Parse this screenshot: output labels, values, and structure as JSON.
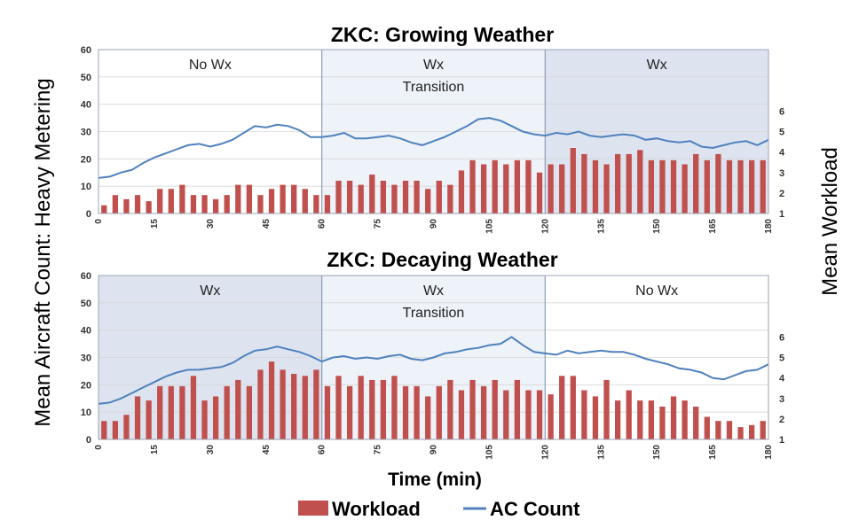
{
  "figure": {
    "ylabel_left": "Mean Aircraft Count: Heavy Metering",
    "ylabel_right": "Mean Workload",
    "xlabel": "Time (min)",
    "legend": [
      {
        "label": "Workload",
        "kind": "bar",
        "color": "#c0504d"
      },
      {
        "label": "AC Count",
        "kind": "line",
        "color": "#4f81bd"
      }
    ],
    "colors": {
      "bar": "#c0504d",
      "line": "#4f81bd",
      "shade_dark": "#dde4f0",
      "shade_light": "#eef2f9",
      "divider": "#8e9cb8"
    },
    "legend_placement": "bottom-center"
  },
  "chart_data": [
    {
      "type": "bar",
      "title": "ZKC: Growing Weather",
      "xlim": [
        0,
        180
      ],
      "x_ticks": [
        0,
        15,
        30,
        45,
        60,
        75,
        90,
        105,
        120,
        135,
        150,
        165,
        180
      ],
      "ylim_left": [
        0,
        60
      ],
      "y_ticks_left": [
        0,
        10,
        20,
        30,
        40,
        50,
        60
      ],
      "ylim_right": [
        1,
        9
      ],
      "y_ticks_right": [
        1,
        2,
        3,
        4,
        5,
        6
      ],
      "regions": [
        {
          "start": 0,
          "end": 60,
          "label": "No Wx",
          "shade": "none"
        },
        {
          "start": 60,
          "end": 120,
          "label": "Wx\nTransition",
          "shade": "light"
        },
        {
          "start": 120,
          "end": 180,
          "label": "Wx",
          "shade": "dark"
        }
      ],
      "series": [
        {
          "name": "Workload",
          "kind": "bar",
          "axis": "right",
          "x": [
            1.5,
            4.5,
            7.5,
            10.5,
            13.5,
            16.5,
            19.5,
            22.5,
            25.5,
            28.5,
            31.5,
            34.5,
            37.5,
            40.5,
            43.5,
            46.5,
            49.5,
            52.5,
            55.5,
            58.5,
            61.5,
            64.5,
            67.5,
            70.5,
            73.5,
            76.5,
            79.5,
            82.5,
            85.5,
            88.5,
            91.5,
            94.5,
            97.5,
            100.5,
            103.5,
            106.5,
            109.5,
            112.5,
            115.5,
            118.5,
            121.5,
            124.5,
            127.5,
            130.5,
            133.5,
            136.5,
            139.5,
            142.5,
            145.5,
            148.5,
            151.5,
            154.5,
            157.5,
            160.5,
            163.5,
            166.5,
            169.5,
            172.5,
            175.5,
            178.5
          ],
          "values": [
            1.4,
            1.9,
            1.7,
            1.9,
            1.6,
            2.2,
            2.2,
            2.4,
            1.9,
            1.9,
            1.7,
            1.9,
            2.4,
            2.4,
            1.9,
            2.2,
            2.4,
            2.4,
            2.2,
            1.9,
            1.9,
            2.6,
            2.6,
            2.4,
            2.9,
            2.6,
            2.4,
            2.6,
            2.6,
            2.2,
            2.6,
            2.4,
            3.1,
            3.6,
            3.4,
            3.6,
            3.4,
            3.6,
            3.6,
            3.0,
            3.4,
            3.4,
            4.2,
            3.9,
            3.6,
            3.4,
            3.9,
            3.9,
            4.1,
            3.6,
            3.6,
            3.6,
            3.4,
            3.9,
            3.6,
            3.9,
            3.6,
            3.6,
            3.6,
            3.6
          ]
        },
        {
          "name": "AC Count",
          "kind": "line",
          "axis": "left",
          "x": [
            0,
            3,
            6,
            9,
            12,
            15,
            18,
            21,
            24,
            27,
            30,
            33,
            36,
            39,
            42,
            45,
            48,
            51,
            54,
            57,
            60,
            63,
            66,
            69,
            72,
            75,
            78,
            81,
            84,
            87,
            90,
            93,
            96,
            99,
            102,
            105,
            108,
            111,
            114,
            117,
            120,
            123,
            126,
            129,
            132,
            135,
            138,
            141,
            144,
            147,
            150,
            153,
            156,
            159,
            162,
            165,
            168,
            171,
            174,
            177,
            180
          ],
          "values": [
            13,
            13.5,
            15,
            16,
            18.5,
            20.5,
            22,
            23.5,
            25,
            25.5,
            24.5,
            25.5,
            27,
            29.5,
            32,
            31.5,
            32.5,
            32,
            30.5,
            28,
            28,
            28.5,
            29.5,
            27.5,
            27.5,
            28,
            28.5,
            27.5,
            26,
            25,
            26.5,
            28,
            30,
            32,
            34.5,
            35,
            34,
            32,
            30,
            29,
            28.5,
            29.5,
            29,
            30,
            28.5,
            28,
            28.5,
            29,
            28.5,
            27,
            27.5,
            26.5,
            26,
            26.5,
            24.5,
            24,
            25,
            26,
            26.5,
            25,
            27
          ]
        }
      ]
    },
    {
      "type": "bar",
      "title": "ZKC: Decaying Weather",
      "xlim": [
        0,
        180
      ],
      "x_ticks": [
        0,
        15,
        30,
        45,
        60,
        75,
        90,
        105,
        120,
        135,
        150,
        165,
        180
      ],
      "ylim_left": [
        0,
        60
      ],
      "y_ticks_left": [
        0,
        10,
        20,
        30,
        40,
        50,
        60
      ],
      "ylim_right": [
        1,
        9
      ],
      "y_ticks_right": [
        1,
        2,
        3,
        4,
        5,
        6
      ],
      "regions": [
        {
          "start": 0,
          "end": 60,
          "label": "Wx",
          "shade": "dark"
        },
        {
          "start": 60,
          "end": 120,
          "label": "Wx\nTransition",
          "shade": "light"
        },
        {
          "start": 120,
          "end": 180,
          "label": "No Wx",
          "shade": "none"
        }
      ],
      "series": [
        {
          "name": "Workload",
          "kind": "bar",
          "axis": "right",
          "x": [
            1.5,
            4.5,
            7.5,
            10.5,
            13.5,
            16.5,
            19.5,
            22.5,
            25.5,
            28.5,
            31.5,
            34.5,
            37.5,
            40.5,
            43.5,
            46.5,
            49.5,
            52.5,
            55.5,
            58.5,
            61.5,
            64.5,
            67.5,
            70.5,
            73.5,
            76.5,
            79.5,
            82.5,
            85.5,
            88.5,
            91.5,
            94.5,
            97.5,
            100.5,
            103.5,
            106.5,
            109.5,
            112.5,
            115.5,
            118.5,
            121.5,
            124.5,
            127.5,
            130.5,
            133.5,
            136.5,
            139.5,
            142.5,
            145.5,
            148.5,
            151.5,
            154.5,
            157.5,
            160.5,
            163.5,
            166.5,
            169.5,
            172.5,
            175.5,
            178.5
          ],
          "values": [
            1.9,
            1.9,
            2.2,
            3.1,
            2.9,
            3.6,
            3.6,
            3.6,
            4.1,
            2.9,
            3.1,
            3.6,
            3.9,
            3.6,
            4.4,
            4.8,
            4.4,
            4.2,
            4.1,
            4.4,
            3.6,
            4.1,
            3.6,
            4.1,
            3.9,
            3.9,
            4.1,
            3.6,
            3.6,
            3.1,
            3.6,
            3.9,
            3.4,
            3.9,
            3.6,
            3.9,
            3.4,
            3.9,
            3.4,
            3.4,
            3.2,
            4.1,
            4.1,
            3.4,
            3.1,
            3.9,
            2.9,
            3.4,
            2.9,
            2.9,
            2.6,
            3.1,
            2.9,
            2.6,
            2.1,
            1.9,
            1.9,
            1.6,
            1.7,
            1.9
          ]
        },
        {
          "name": "AC Count",
          "kind": "line",
          "axis": "left",
          "x": [
            0,
            3,
            6,
            9,
            12,
            15,
            18,
            21,
            24,
            27,
            30,
            33,
            36,
            39,
            42,
            45,
            48,
            51,
            54,
            57,
            60,
            63,
            66,
            69,
            72,
            75,
            78,
            81,
            84,
            87,
            90,
            93,
            96,
            99,
            102,
            105,
            108,
            111,
            114,
            117,
            120,
            123,
            126,
            129,
            132,
            135,
            138,
            141,
            144,
            147,
            150,
            153,
            156,
            159,
            162,
            165,
            168,
            171,
            174,
            177,
            180
          ],
          "values": [
            13,
            13.5,
            15,
            17,
            19,
            21,
            23,
            24.5,
            25.5,
            25.5,
            26,
            26.5,
            28,
            30.5,
            32.5,
            33,
            34,
            33,
            32,
            30.5,
            28.5,
            30,
            30.5,
            29.5,
            30,
            29.5,
            30.5,
            31,
            29.5,
            29,
            30,
            31.5,
            32,
            33,
            33.5,
            34.5,
            35,
            37.5,
            34.5,
            32,
            31.5,
            31,
            32.5,
            31.5,
            32,
            32.5,
            32,
            32,
            31,
            29.5,
            28.5,
            27.5,
            26,
            25.5,
            24.5,
            22.5,
            22,
            23.5,
            25,
            25.5,
            27.5
          ]
        }
      ]
    }
  ]
}
